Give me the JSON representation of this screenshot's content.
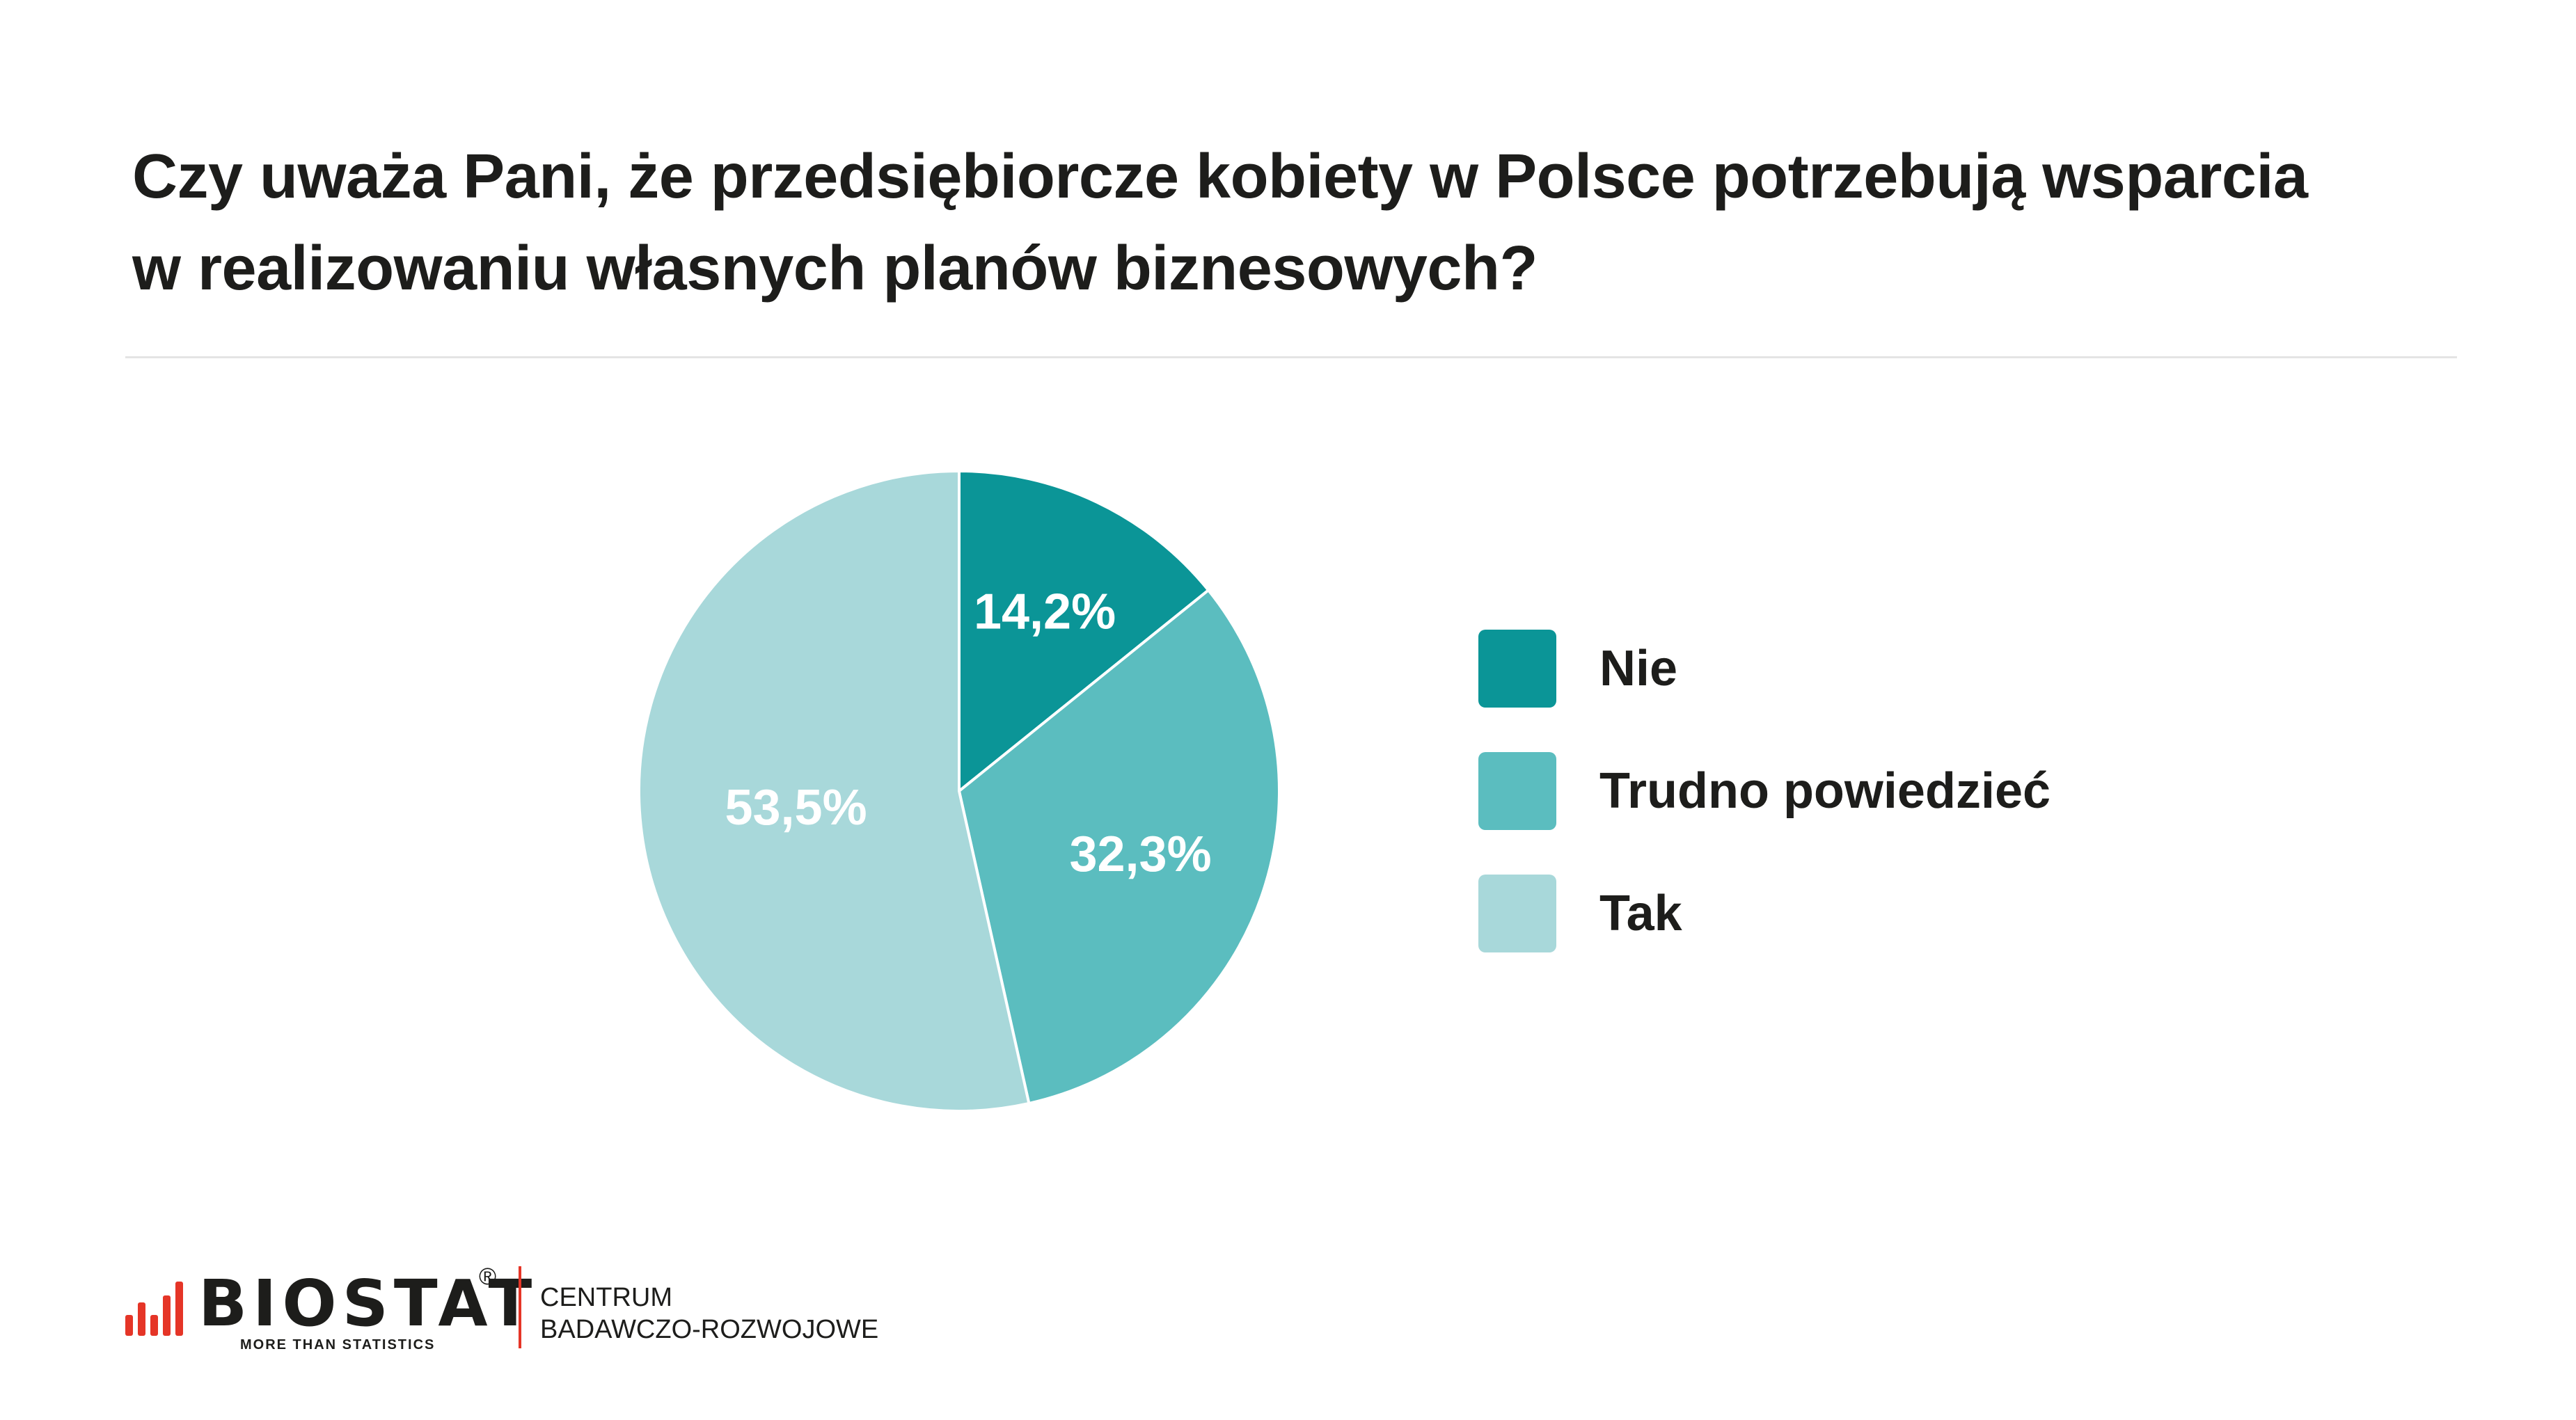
{
  "title_lines": [
    "Czy uważa Pani, że przedsiębiorcze kobiety w Polsce potrzebują wsparcia",
    "w realizowaniu własnych planów biznesowych?"
  ],
  "chart_data": {
    "type": "pie",
    "title": "Czy uważa Pani, że przedsiębiorcze kobiety w Polsce potrzebują wsparcia w realizowaniu własnych planów biznesowych?",
    "start": "12 o'clock",
    "direction": "clockwise",
    "slices": [
      {
        "label": "Nie",
        "value": 14.2,
        "display": "14,2%",
        "color": "#0b9597"
      },
      {
        "label": "Trudno powiedzieć",
        "value": 32.3,
        "display": "32,3%",
        "color": "#5bbdbf"
      },
      {
        "label": "Tak",
        "value": 53.5,
        "display": "53,5%",
        "color": "#a8d8da"
      }
    ],
    "legend": {
      "placement": "right",
      "items": [
        "Nie",
        "Trudno powiedzieć",
        "Tak"
      ]
    }
  },
  "footer": {
    "brand": "BIOSTAT",
    "registered": "®",
    "tagline": "MORE THAN STATISTICS",
    "dept_line1": "CENTRUM",
    "dept_line2": "BADAWCZO-ROZWOJOWE",
    "accent_color": "#e53527"
  }
}
